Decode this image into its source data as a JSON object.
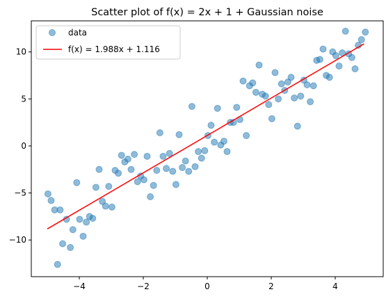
{
  "chart_data": {
    "type": "scatter",
    "title": "Scatter plot of f(x) = 2x + 1 + Gaussian noise",
    "xlabel": "",
    "ylabel": "",
    "xlim": [
      -5.5,
      5.5
    ],
    "ylim": [
      -13.9,
      13.3
    ],
    "x_ticks": [
      -4,
      -2,
      0,
      2,
      4
    ],
    "y_ticks": [
      -10,
      -5,
      0,
      5,
      10
    ],
    "x_tick_labels": [
      "−4",
      "−2",
      "0",
      "2",
      "4"
    ],
    "y_tick_labels": [
      "−10",
      "−5",
      "0",
      "5",
      "10"
    ],
    "grid": false,
    "legend": {
      "placement": "upper-left",
      "entries": [
        "data",
        "f(x) = 1.988x + 1.116"
      ]
    },
    "series": [
      {
        "name": "data",
        "kind": "scatter",
        "color": "#1f77b4",
        "alpha": 0.5,
        "points": [
          [
            -4.98,
            -5.1
          ],
          [
            -4.88,
            -5.8
          ],
          [
            -4.77,
            -6.8
          ],
          [
            -4.68,
            -12.6
          ],
          [
            -4.6,
            -6.8
          ],
          [
            -4.52,
            -10.4
          ],
          [
            -4.4,
            -7.8
          ],
          [
            -4.28,
            -10.8
          ],
          [
            -4.2,
            -8.9
          ],
          [
            -4.08,
            -3.9
          ],
          [
            -3.99,
            -7.8
          ],
          [
            -3.88,
            -9.6
          ],
          [
            -3.78,
            -8.1
          ],
          [
            -3.68,
            -7.5
          ],
          [
            -3.58,
            -7.7
          ],
          [
            -3.48,
            -4.4
          ],
          [
            -3.38,
            -2.5
          ],
          [
            -3.28,
            -5.9
          ],
          [
            -3.18,
            -6.4
          ],
          [
            -3.08,
            -4.3
          ],
          [
            -2.98,
            -6.5
          ],
          [
            -2.88,
            -2.6
          ],
          [
            -2.78,
            -2.9
          ],
          [
            -2.68,
            -1.0
          ],
          [
            -2.58,
            -1.7
          ],
          [
            -2.48,
            -1.4
          ],
          [
            -2.38,
            -2.5
          ],
          [
            -2.28,
            -0.9
          ],
          [
            -2.18,
            -3.8
          ],
          [
            -2.08,
            -3.2
          ],
          [
            -1.98,
            -3.6
          ],
          [
            -1.88,
            -1.1
          ],
          [
            -1.78,
            -5.4
          ],
          [
            -1.68,
            -4.2
          ],
          [
            -1.58,
            -2.6
          ],
          [
            -1.48,
            1.4
          ],
          [
            -1.38,
            -1.1
          ],
          [
            -1.28,
            -2.4
          ],
          [
            -1.18,
            -0.8
          ],
          [
            -1.08,
            -2.7
          ],
          [
            -0.98,
            -4.1
          ],
          [
            -0.88,
            1.2
          ],
          [
            -0.78,
            -2.3
          ],
          [
            -0.68,
            -1.6
          ],
          [
            -0.58,
            -2.7
          ],
          [
            -0.48,
            4.2
          ],
          [
            -0.38,
            -2.2
          ],
          [
            -0.28,
            -0.6
          ],
          [
            -0.18,
            -1.3
          ],
          [
            -0.08,
            -0.5
          ],
          [
            0.02,
            1.1
          ],
          [
            0.12,
            2.2
          ],
          [
            0.22,
            0.4
          ],
          [
            0.32,
            4.0
          ],
          [
            0.42,
            0.1
          ],
          [
            0.52,
            0.5
          ],
          [
            0.62,
            -0.6
          ],
          [
            0.72,
            2.5
          ],
          [
            0.82,
            2.5
          ],
          [
            0.92,
            4.1
          ],
          [
            1.02,
            2.8
          ],
          [
            1.12,
            6.9
          ],
          [
            1.22,
            1.1
          ],
          [
            1.32,
            6.4
          ],
          [
            1.42,
            6.7
          ],
          [
            1.52,
            5.7
          ],
          [
            1.62,
            8.6
          ],
          [
            1.72,
            5.5
          ],
          [
            1.82,
            5.3
          ],
          [
            1.92,
            4.4
          ],
          [
            2.02,
            2.9
          ],
          [
            2.12,
            7.8
          ],
          [
            2.22,
            5.0
          ],
          [
            2.32,
            6.6
          ],
          [
            2.42,
            5.9
          ],
          [
            2.52,
            6.8
          ],
          [
            2.62,
            7.3
          ],
          [
            2.72,
            5.1
          ],
          [
            2.82,
            2.1
          ],
          [
            2.92,
            5.3
          ],
          [
            3.02,
            7.0
          ],
          [
            3.12,
            6.5
          ],
          [
            3.22,
            4.7
          ],
          [
            3.32,
            6.4
          ],
          [
            3.42,
            9.1
          ],
          [
            3.52,
            9.2
          ],
          [
            3.62,
            10.3
          ],
          [
            3.72,
            7.5
          ],
          [
            3.82,
            7.3
          ],
          [
            3.92,
            10.0
          ],
          [
            4.02,
            9.6
          ],
          [
            4.12,
            8.5
          ],
          [
            4.22,
            9.9
          ],
          [
            4.32,
            12.2
          ],
          [
            4.42,
            9.8
          ],
          [
            4.52,
            9.4
          ],
          [
            4.62,
            8.2
          ],
          [
            4.72,
            10.7
          ],
          [
            4.82,
            11.3
          ],
          [
            4.94,
            12.1
          ]
        ]
      },
      {
        "name": "f(x) = 1.988x + 1.116",
        "kind": "line",
        "color": "#ff0000",
        "slope": 1.988,
        "intercept": 1.116,
        "x_range": [
          -5.0,
          4.9
        ]
      }
    ]
  }
}
